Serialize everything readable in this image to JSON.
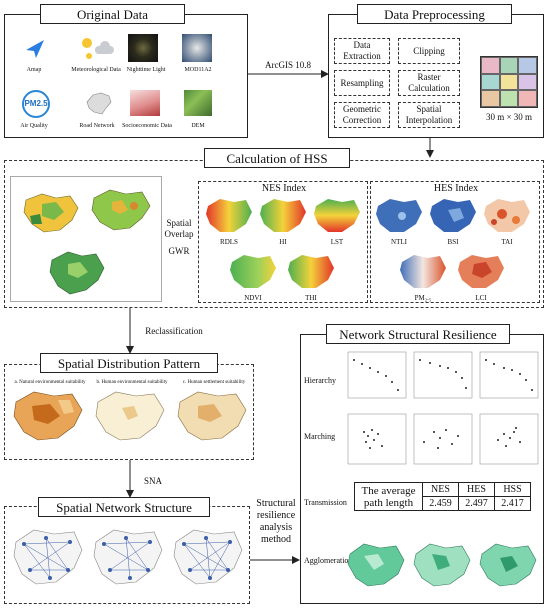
{
  "original": {
    "title": "Original Data",
    "items": [
      "Amap",
      "Meteorological Data",
      "Nighttime Light",
      "MOD11A2",
      "Air Quality",
      "Road Network",
      "Socioeconomic Data",
      "DEM"
    ],
    "pm_badge": "PM2.5"
  },
  "arrow1": "ArcGIS 10.8",
  "preprocess": {
    "title": "Data Preprocessing",
    "boxes": [
      "Data Extraction",
      "Clipping",
      "Resampling",
      "Raster Calculation",
      "Geometric Correction",
      "Spatial Interpolation"
    ],
    "grid_label": "30 m × 30 m",
    "grid_colors": [
      "#e9b9c8",
      "#a8d5b8",
      "#b6c8e6",
      "#a7d7d0",
      "#f3e39a",
      "#d9c4e8",
      "#e9c7a2",
      "#bde2b0",
      "#f1b6b6"
    ]
  },
  "hss": {
    "title": "Calculation of HSS",
    "nes_title": "NES Index",
    "hes_title": "HES Index",
    "nes_maps": [
      "RDLS",
      "HI",
      "LST",
      "NDVI",
      "THI"
    ],
    "hes_maps": [
      "NTLI",
      "BSI",
      "TAI",
      "PM₂.₅",
      "LCI"
    ],
    "overlap": "Spatial Overlap",
    "gwr": "GWR"
  },
  "reclass": "Reclassification",
  "sdp": {
    "title": "Spatial Distribution Pattern",
    "maps": [
      "a. Natural environmental suitability",
      "b. Human environmental suitability",
      "c. Human settlement suitability"
    ]
  },
  "sna": "SNA",
  "sns": {
    "title": "Spatial Network Structure"
  },
  "method": "Structural resilience analysis method",
  "nsr": {
    "title": "Network Structural Resilience",
    "rows": [
      "Hierarchy",
      "Marching",
      "Transmission",
      "Agglomeration"
    ],
    "table": {
      "label": "The average path length",
      "headers": [
        "NES",
        "HES",
        "HSS"
      ],
      "values": [
        "2.459",
        "2.497",
        "2.417"
      ]
    }
  }
}
